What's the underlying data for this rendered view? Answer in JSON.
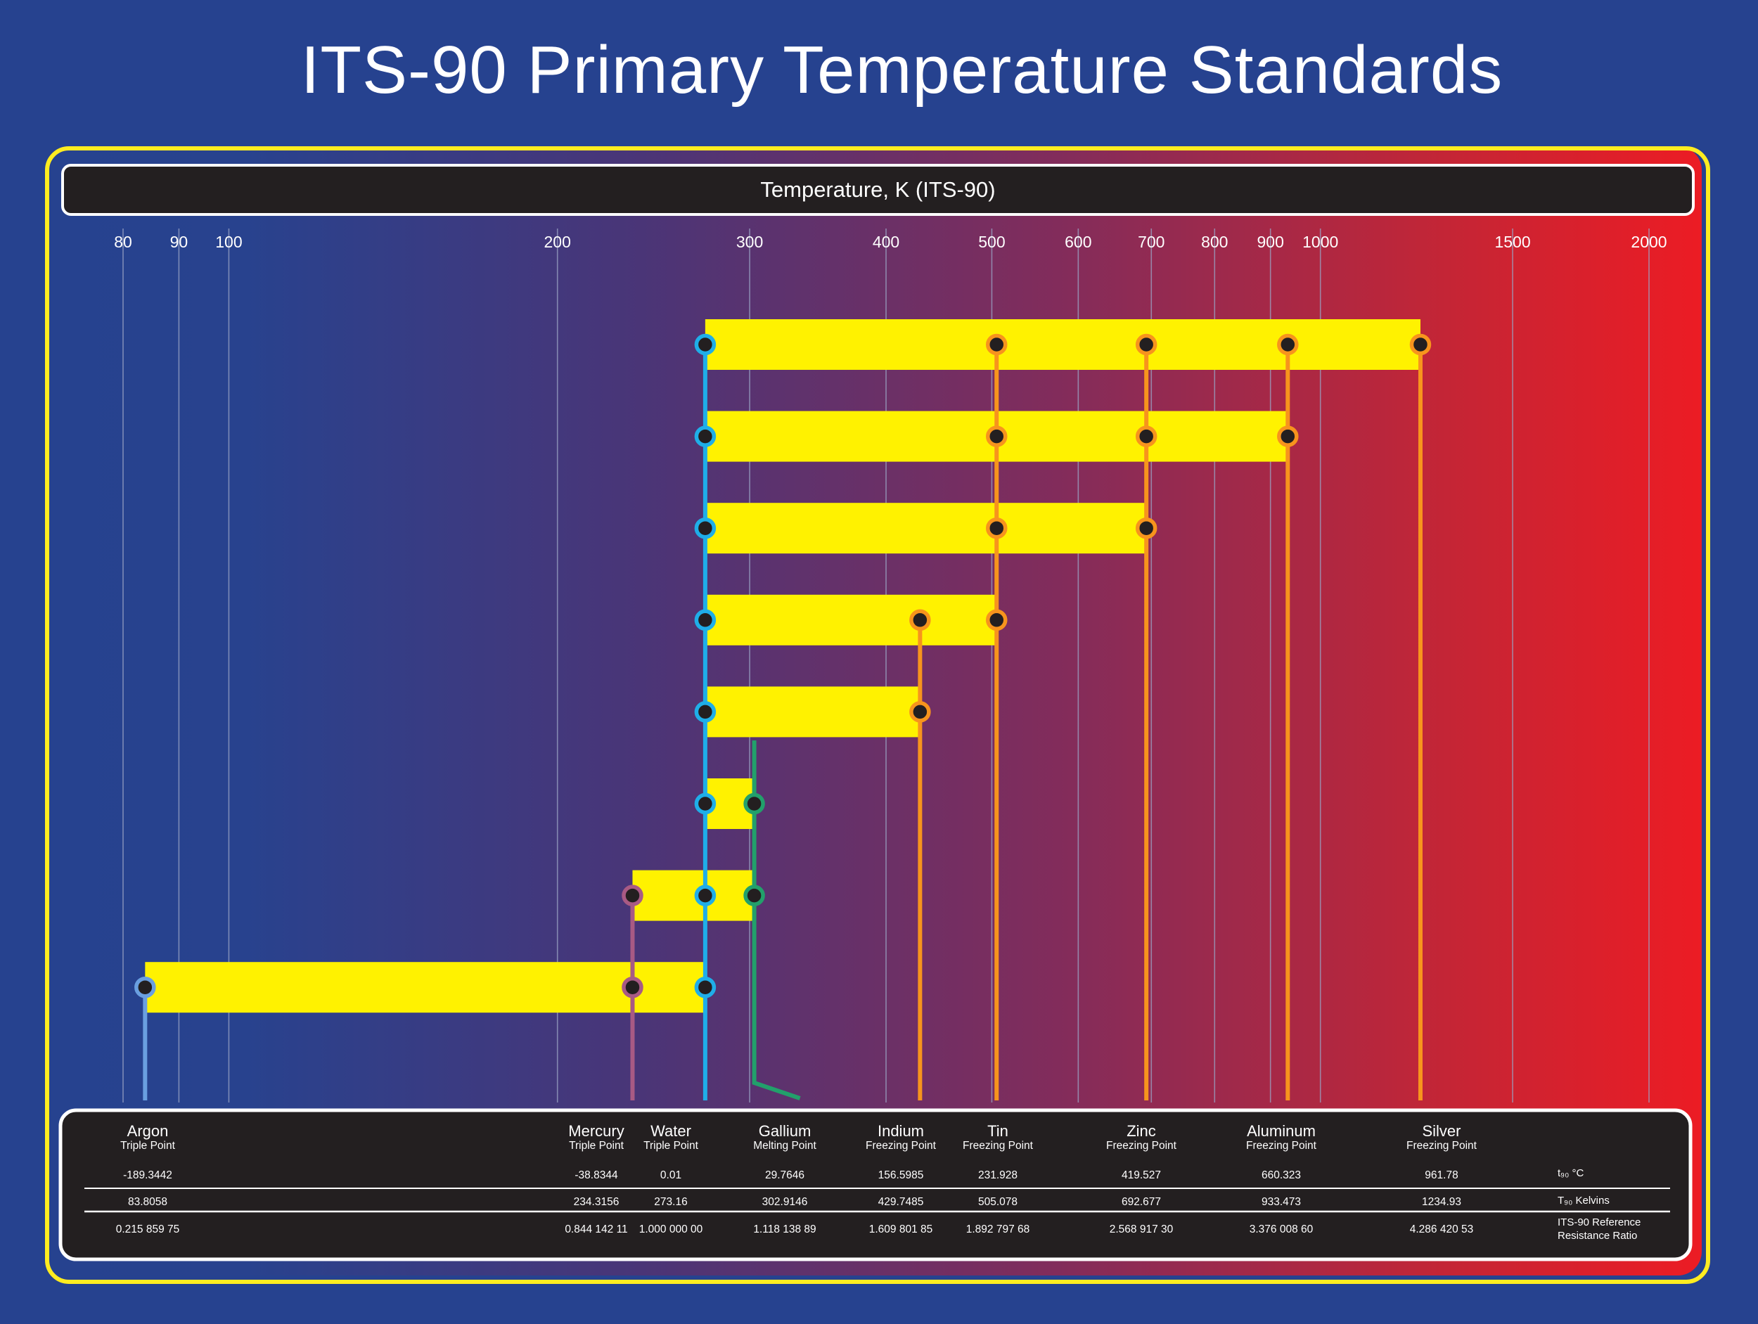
{
  "title": "ITS-90 Primary Temperature Standards",
  "axis_label": "Temperature,  K (ITS-90)",
  "colors": {
    "background": "#26428f",
    "gradient": [
      "#26428f",
      "#4a3577",
      "#8a2b55",
      "#ec1c24"
    ],
    "bar": "#fff200",
    "frame": "#ffec20",
    "panel": "#231f20",
    "grid": "#9aa4c4",
    "argon": "#6a9fe0",
    "mercury": "#a85a84",
    "water": "#1faee8",
    "gallium": "#22a06b",
    "metal": "#f7941d",
    "dot": "#231f20"
  },
  "chart_data": {
    "type": "bar",
    "scale": "log",
    "xlabel": "Temperature,  K (ITS-90)",
    "xlim": [
      77,
      2060
    ],
    "ticks": [
      80,
      90,
      100,
      200,
      300,
      400,
      500,
      600,
      700,
      800,
      900,
      1000,
      1500,
      2000
    ],
    "tick_labels": [
      "80",
      "90",
      "100",
      "200",
      "300",
      "400",
      "500",
      "600",
      "700",
      "800",
      "900",
      "1000",
      "1500",
      "2000"
    ],
    "points": [
      {
        "name": "Argon",
        "type": "Triple Point",
        "celsius": "-189.3442",
        "kelvin": "83.8058",
        "ratio": "0.215 859 75",
        "value": 83.8058,
        "color_key": "argon"
      },
      {
        "name": "Mercury",
        "type": "Triple Point",
        "celsius": "-38.8344",
        "kelvin": "234.3156",
        "ratio": "0.844 142 11",
        "value": 234.3156,
        "color_key": "mercury"
      },
      {
        "name": "Water",
        "type": "Triple Point",
        "celsius": "0.01",
        "kelvin": "273.16",
        "ratio": "1.000 000 00",
        "value": 273.16,
        "color_key": "water"
      },
      {
        "name": "Gallium",
        "type": "Melting Point",
        "celsius": "29.7646",
        "kelvin": "302.9146",
        "ratio": "1.118 138 89",
        "value": 302.9146,
        "color_key": "gallium"
      },
      {
        "name": "Indium",
        "type": "Freezing Point",
        "celsius": "156.5985",
        "kelvin": "429.7485",
        "ratio": "1.609 801 85",
        "value": 429.7485,
        "color_key": "metal"
      },
      {
        "name": "Tin",
        "type": "Freezing Point",
        "celsius": "231.928",
        "kelvin": "505.078",
        "ratio": "1.892 797 68",
        "value": 505.078,
        "color_key": "metal"
      },
      {
        "name": "Zinc",
        "type": "Freezing Point",
        "celsius": "419.527",
        "kelvin": "692.677",
        "ratio": "2.568 917 30",
        "value": 692.677,
        "color_key": "metal"
      },
      {
        "name": "Aluminum",
        "type": "Freezing Point",
        "celsius": "660.323",
        "kelvin": "933.473",
        "ratio": "3.376 008 60",
        "value": 933.473,
        "color_key": "metal"
      },
      {
        "name": "Silver",
        "type": "Freezing Point",
        "celsius": "961.78",
        "kelvin": "1234.93",
        "ratio": "4.286 420 53",
        "value": 1234.93,
        "color_key": "metal"
      }
    ],
    "ranges": [
      {
        "from": 273.16,
        "to": 1234.93,
        "points": [
          "Water",
          "Tin",
          "Zinc",
          "Aluminum",
          "Silver"
        ]
      },
      {
        "from": 273.16,
        "to": 933.473,
        "points": [
          "Water",
          "Tin",
          "Zinc",
          "Aluminum"
        ]
      },
      {
        "from": 273.16,
        "to": 692.677,
        "points": [
          "Water",
          "Tin",
          "Zinc"
        ]
      },
      {
        "from": 273.16,
        "to": 505.078,
        "points": [
          "Water",
          "Indium",
          "Tin"
        ]
      },
      {
        "from": 273.16,
        "to": 429.7485,
        "points": [
          "Water",
          "Indium"
        ]
      },
      {
        "from": 273.16,
        "to": 302.9146,
        "points": [
          "Water",
          "Gallium"
        ]
      },
      {
        "from": 234.3156,
        "to": 302.9146,
        "points": [
          "Mercury",
          "Water",
          "Gallium"
        ]
      },
      {
        "from": 83.8058,
        "to": 273.16,
        "points": [
          "Argon",
          "Mercury",
          "Water"
        ]
      }
    ]
  },
  "table": {
    "row_labels": [
      [
        "t₉₀ °C"
      ],
      [
        "T₉₀ Kelvins"
      ],
      [
        "ITS-90 Reference",
        "Resistance Ratio"
      ]
    ]
  }
}
